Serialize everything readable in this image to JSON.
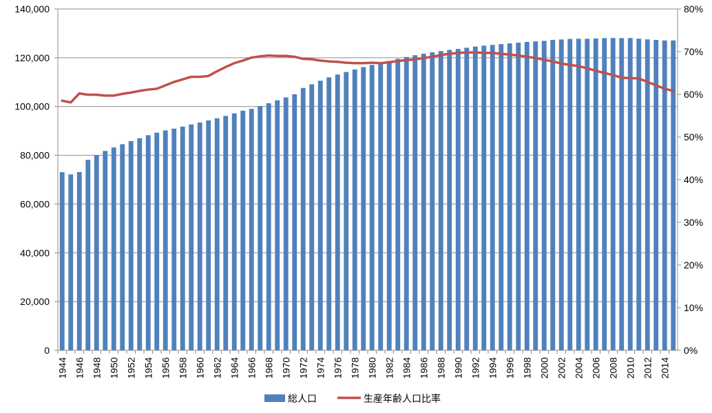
{
  "chart_data": {
    "type": "bar+line",
    "x": [
      1944,
      1945,
      1946,
      1947,
      1948,
      1949,
      1950,
      1951,
      1952,
      1953,
      1954,
      1955,
      1956,
      1957,
      1958,
      1959,
      1960,
      1961,
      1962,
      1963,
      1964,
      1965,
      1966,
      1967,
      1968,
      1969,
      1970,
      1971,
      1972,
      1973,
      1974,
      1975,
      1976,
      1977,
      1978,
      1979,
      1980,
      1981,
      1982,
      1983,
      1984,
      1985,
      1986,
      1987,
      1988,
      1989,
      1990,
      1991,
      1992,
      1993,
      1994,
      1995,
      1996,
      1997,
      1998,
      1999,
      2000,
      2001,
      2002,
      2003,
      2004,
      2005,
      2006,
      2007,
      2008,
      2009,
      2010,
      2011,
      2012,
      2013,
      2014,
      2015
    ],
    "x_tick_labels": [
      "1944",
      "1946",
      "1948",
      "1950",
      "1952",
      "1954",
      "1956",
      "1958",
      "1960",
      "1962",
      "1964",
      "1966",
      "1968",
      "1970",
      "1972",
      "1974",
      "1976",
      "1978",
      "1980",
      "1982",
      "1984",
      "1986",
      "1988",
      "1990",
      "1992",
      "1994",
      "1996",
      "1998",
      "2000",
      "2002",
      "2004",
      "2006",
      "2008",
      "2010",
      "2012",
      "2014"
    ],
    "series": [
      {
        "name": "総人口",
        "type": "bar",
        "axis": "left",
        "color": "#4F81BD",
        "values": [
          73064,
          72147,
          73114,
          78101,
          80002,
          81773,
          83200,
          84541,
          85808,
          86981,
          88239,
          89276,
          90172,
          90928,
          91767,
          92641,
          93419,
          94287,
          95181,
          96156,
          97182,
          98275,
          99036,
          100196,
          101331,
          102536,
          103720,
          105015,
          107595,
          109104,
          110573,
          111940,
          113094,
          114165,
          115190,
          116155,
          117060,
          117902,
          118728,
          119536,
          120305,
          121049,
          121660,
          122239,
          122745,
          123205,
          123611,
          124101,
          124567,
          124938,
          125265,
          125570,
          125864,
          126166,
          126486,
          126686,
          126926,
          127316,
          127486,
          127694,
          127787,
          127768,
          127901,
          128033,
          128084,
          128032,
          128057,
          127799,
          127515,
          127298,
          127083,
          127095
        ]
      },
      {
        "name": "生産年齢人口比率",
        "type": "line",
        "axis": "right",
        "color": "#C0504D",
        "values": [
          58.5,
          58.1,
          60.2,
          59.9,
          59.9,
          59.7,
          59.7,
          60.1,
          60.4,
          60.8,
          61.1,
          61.3,
          62.1,
          62.9,
          63.5,
          64.1,
          64.1,
          64.3,
          65.4,
          66.4,
          67.3,
          67.9,
          68.6,
          68.9,
          69.1,
          69.0,
          69.0,
          68.8,
          68.3,
          68.2,
          67.9,
          67.7,
          67.6,
          67.4,
          67.3,
          67.3,
          67.4,
          67.3,
          67.5,
          67.8,
          68.0,
          68.2,
          68.5,
          68.8,
          69.2,
          69.5,
          69.7,
          69.8,
          69.8,
          69.7,
          69.7,
          69.5,
          69.3,
          69.1,
          68.8,
          68.5,
          68.1,
          67.7,
          67.2,
          66.9,
          66.6,
          66.1,
          65.5,
          65.0,
          64.5,
          63.9,
          63.8,
          63.7,
          62.9,
          62.1,
          61.3,
          60.8
        ]
      }
    ],
    "y_left": {
      "min": 0,
      "max": 140000,
      "step": 20000,
      "tick_labels": [
        "0",
        "20,000",
        "40,000",
        "60,000",
        "80,000",
        "100,000",
        "120,000",
        "140,000"
      ]
    },
    "y_right": {
      "min": 0,
      "max": 80,
      "step": 10,
      "tick_labels": [
        "0%",
        "10%",
        "20%",
        "30%",
        "40%",
        "50%",
        "60%",
        "70%",
        "80%"
      ]
    },
    "grid": true,
    "legend_position": "bottom"
  }
}
